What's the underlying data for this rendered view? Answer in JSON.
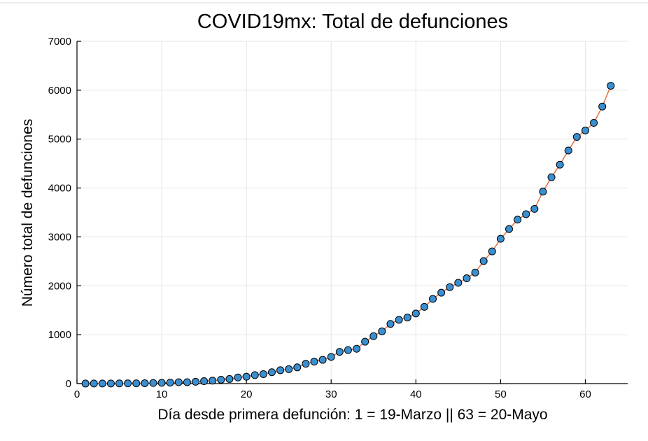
{
  "chart_data": {
    "type": "line",
    "title": "COVID19mx: Total de defunciones",
    "xlabel": "Día desde primera defunción: 1 = 19-Marzo || 63 = 20-Mayo",
    "ylabel": "Número total de defunciones",
    "xlim": [
      0,
      65
    ],
    "ylim": [
      0,
      7000
    ],
    "xticks": [
      0,
      10,
      20,
      30,
      40,
      50,
      60
    ],
    "yticks": [
      0,
      1000,
      2000,
      3000,
      4000,
      5000,
      6000,
      7000
    ],
    "grid": true,
    "legend": "none",
    "series": [
      {
        "line_color": "#e26f46",
        "marker_color": "#3a8fd1",
        "marker_edge": "#000000",
        "x": [
          1,
          2,
          3,
          4,
          5,
          6,
          7,
          8,
          9,
          10,
          11,
          12,
          13,
          14,
          15,
          16,
          17,
          18,
          19,
          20,
          21,
          22,
          23,
          24,
          25,
          26,
          27,
          28,
          29,
          30,
          31,
          32,
          33,
          34,
          35,
          36,
          37,
          38,
          39,
          40,
          41,
          42,
          43,
          44,
          45,
          46,
          47,
          48,
          49,
          50,
          51,
          52,
          53,
          54,
          55,
          56,
          57,
          58,
          59,
          60,
          61,
          62,
          63
        ],
        "y": [
          1,
          2,
          2,
          2,
          4,
          5,
          6,
          8,
          12,
          16,
          20,
          28,
          29,
          37,
          50,
          60,
          79,
          94,
          125,
          141,
          174,
          194,
          233,
          273,
          296,
          332,
          406,
          449,
          486,
          546,
          650,
          686,
          712,
          857,
          970,
          1069,
          1221,
          1305,
          1351,
          1434,
          1569,
          1732,
          1859,
          1972,
          2061,
          2154,
          2271,
          2507,
          2704,
          2961,
          3160,
          3353,
          3465,
          3573,
          3926,
          4220,
          4477,
          4767,
          5045,
          5177,
          5332,
          5666,
          6090
        ]
      }
    ]
  }
}
